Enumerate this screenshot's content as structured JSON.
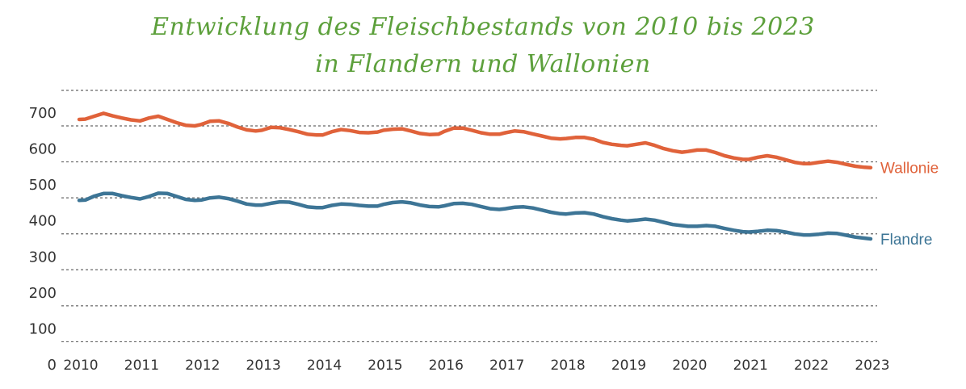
{
  "chart_data": {
    "type": "line",
    "title": "Entwicklung des Fleischbestands von 2010 bis 2023",
    "subtitle": "in Flandern und Wallonien",
    "xlabel": "",
    "ylabel": "",
    "xlim": [
      2010,
      2023
    ],
    "ylim": [
      0,
      700
    ],
    "grid": true,
    "y_ticks": [
      "0",
      "100",
      "200",
      "300",
      "400",
      "500",
      "600",
      "700"
    ],
    "x_ticks": [
      "2010",
      "2011",
      "2012",
      "2013",
      "2014",
      "2015",
      "2016",
      "2017",
      "2018",
      "2019",
      "2020",
      "2021",
      "2022",
      "2023"
    ],
    "x": [
      2010.0,
      2010.1,
      2010.25,
      2010.4,
      2010.55,
      2010.7,
      2010.85,
      2011.0,
      2011.15,
      2011.3,
      2011.45,
      2011.6,
      2011.75,
      2011.9,
      2012.0,
      2012.15,
      2012.3,
      2012.45,
      2012.6,
      2012.75,
      2012.9,
      2013.0,
      2013.15,
      2013.3,
      2013.45,
      2013.6,
      2013.75,
      2013.9,
      2014.0,
      2014.15,
      2014.3,
      2014.45,
      2014.6,
      2014.75,
      2014.9,
      2015.0,
      2015.15,
      2015.3,
      2015.45,
      2015.6,
      2015.75,
      2015.9,
      2016.0,
      2016.15,
      2016.3,
      2016.45,
      2016.6,
      2016.75,
      2016.9,
      2017.0,
      2017.15,
      2017.3,
      2017.45,
      2017.6,
      2017.75,
      2017.9,
      2018.0,
      2018.15,
      2018.3,
      2018.45,
      2018.6,
      2018.75,
      2018.9,
      2019.0,
      2019.15,
      2019.3,
      2019.45,
      2019.6,
      2019.75,
      2019.9,
      2020.0,
      2020.15,
      2020.3,
      2020.45,
      2020.6,
      2020.75,
      2020.9,
      2021.0,
      2021.15,
      2021.3,
      2021.45,
      2021.6,
      2021.75,
      2021.9,
      2022.0,
      2022.15,
      2022.3,
      2022.45,
      2022.6,
      2022.75,
      2022.9,
      2023.0
    ],
    "series": [
      {
        "name": "Wallonie",
        "color": "#e0623a",
        "values": [
          682,
          683,
          691,
          699,
          692,
          686,
          681,
          678,
          686,
          691,
          682,
          673,
          666,
          664,
          668,
          677,
          678,
          671,
          661,
          653,
          650,
          652,
          660,
          659,
          654,
          648,
          641,
          639,
          639,
          648,
          654,
          651,
          646,
          645,
          647,
          652,
          655,
          656,
          650,
          643,
          640,
          641,
          649,
          658,
          658,
          652,
          645,
          641,
          641,
          645,
          650,
          648,
          642,
          636,
          630,
          628,
          629,
          632,
          632,
          627,
          618,
          613,
          610,
          609,
          613,
          617,
          610,
          601,
          595,
          591,
          593,
          597,
          597,
          590,
          581,
          575,
          571,
          571,
          577,
          581,
          577,
          570,
          563,
          559,
          559,
          563,
          566,
          563,
          557,
          552,
          549,
          548
        ]
      },
      {
        "name": "Flandre",
        "color": "#3d7596",
        "values": [
          457,
          458,
          469,
          476,
          476,
          470,
          465,
          461,
          468,
          477,
          476,
          468,
          460,
          457,
          458,
          464,
          466,
          462,
          455,
          447,
          444,
          444,
          449,
          453,
          452,
          446,
          439,
          437,
          437,
          443,
          447,
          446,
          443,
          441,
          441,
          446,
          451,
          453,
          450,
          444,
          440,
          439,
          442,
          448,
          449,
          446,
          440,
          434,
          432,
          434,
          438,
          439,
          436,
          430,
          424,
          420,
          419,
          422,
          423,
          419,
          412,
          406,
          402,
          400,
          402,
          405,
          402,
          396,
          390,
          387,
          385,
          385,
          387,
          385,
          379,
          374,
          370,
          369,
          371,
          374,
          373,
          369,
          364,
          361,
          361,
          363,
          366,
          365,
          360,
          355,
          352,
          350
        ]
      }
    ]
  }
}
